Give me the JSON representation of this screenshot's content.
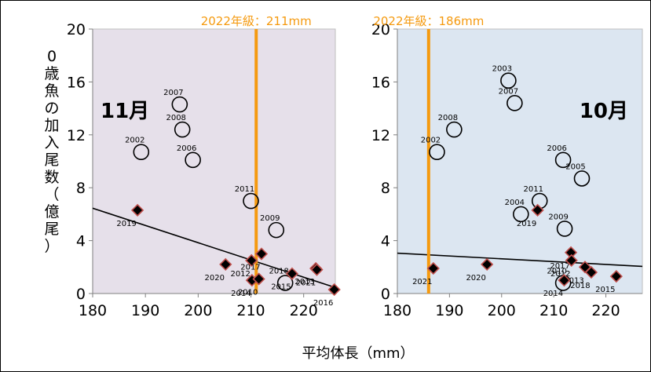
{
  "figure": {
    "xlabel": "平均体長（mm）",
    "ylabel_chars": [
      "0",
      "歳",
      "魚",
      "の",
      "加",
      "入",
      "尾",
      "数",
      "（",
      "億",
      "尾",
      "）"
    ],
    "colors": {
      "marker_line": "#000000",
      "diamond_fill": "#000000",
      "diamond_edge": "#c0504d",
      "vline": "#f59a0f",
      "trend": "#000000"
    }
  },
  "chart_data": [
    {
      "type": "scatter",
      "title": "",
      "panel_label": "11月",
      "plot_bg": "#e6e0ea",
      "xlim": [
        180,
        226
      ],
      "ylim": [
        0,
        20
      ],
      "xticks": [
        180,
        190,
        200,
        210,
        220
      ],
      "yticks": [
        0,
        4,
        8,
        12,
        16,
        20
      ],
      "vline": {
        "x": 211,
        "label": "2022年級：211mm"
      },
      "trendline": {
        "x": [
          180,
          226
        ],
        "y": [
          6.45,
          0.45
        ]
      },
      "series": [
        {
          "marker": "circle",
          "points": [
            {
              "x": 189.2,
              "y": 10.7,
              "label": "2002"
            },
            {
              "x": 196.5,
              "y": 14.3,
              "label": "2007"
            },
            {
              "x": 197.0,
              "y": 12.4,
              "label": "2008"
            },
            {
              "x": 199.0,
              "y": 10.1,
              "label": "2006"
            },
            {
              "x": 210.0,
              "y": 7.0,
              "label": "2011"
            },
            {
              "x": 214.8,
              "y": 4.8,
              "label": "2009"
            },
            {
              "x": 216.5,
              "y": 0.8,
              "label": "2018"
            }
          ]
        },
        {
          "marker": "diamond",
          "points": [
            {
              "x": 188.5,
              "y": 6.3,
              "label": "2019"
            },
            {
              "x": 205.2,
              "y": 2.2,
              "label": "2020"
            },
            {
              "x": 210.1,
              "y": 2.5,
              "label": "2012"
            },
            {
              "x": 210.2,
              "y": 1.0,
              "label": "2014"
            },
            {
              "x": 212.0,
              "y": 3.0,
              "label": "2017"
            },
            {
              "x": 211.5,
              "y": 1.1,
              "label": "2010"
            },
            {
              "x": 217.8,
              "y": 1.5,
              "label": "2015"
            },
            {
              "x": 222.3,
              "y": 1.9,
              "label": "2013"
            },
            {
              "x": 222.5,
              "y": 1.8,
              "label": "2021"
            },
            {
              "x": 225.8,
              "y": 0.3,
              "label": "2016"
            }
          ]
        }
      ]
    },
    {
      "type": "scatter",
      "title": "",
      "panel_label": "10月",
      "plot_bg": "#dce6f1",
      "xlim": [
        180,
        227
      ],
      "ylim": [
        0,
        20
      ],
      "xticks": [
        180,
        190,
        200,
        210,
        220
      ],
      "yticks": [
        0,
        4,
        8,
        12,
        16,
        20
      ],
      "vline": {
        "x": 186,
        "label": "2022年級：186mm"
      },
      "trendline": {
        "x": [
          180,
          227
        ],
        "y": [
          3.05,
          2.05
        ]
      },
      "series": [
        {
          "marker": "circle",
          "points": [
            {
              "x": 187.6,
              "y": 10.7,
              "label": "2002"
            },
            {
              "x": 190.9,
              "y": 12.4,
              "label": "2008"
            },
            {
              "x": 201.3,
              "y": 16.1,
              "label": "2003"
            },
            {
              "x": 202.5,
              "y": 14.4,
              "label": "2007"
            },
            {
              "x": 211.8,
              "y": 10.1,
              "label": "2006"
            },
            {
              "x": 215.4,
              "y": 8.7,
              "label": "2005"
            },
            {
              "x": 207.3,
              "y": 7.0,
              "label": "2011"
            },
            {
              "x": 203.7,
              "y": 6.0,
              "label": "2004"
            },
            {
              "x": 212.1,
              "y": 4.9,
              "label": "2009"
            },
            {
              "x": 211.8,
              "y": 0.8,
              "label": "2010"
            }
          ]
        },
        {
          "marker": "diamond",
          "points": [
            {
              "x": 186.9,
              "y": 1.9,
              "label": "2021"
            },
            {
              "x": 197.2,
              "y": 2.2,
              "label": "2020"
            },
            {
              "x": 206.9,
              "y": 6.3,
              "label": "2019"
            },
            {
              "x": 213.3,
              "y": 3.1,
              "label": "2017"
            },
            {
              "x": 213.4,
              "y": 2.5,
              "label": "2012"
            },
            {
              "x": 216.0,
              "y": 2.0,
              "label": "2013"
            },
            {
              "x": 217.2,
              "y": 1.6,
              "label": "2018"
            },
            {
              "x": 212.0,
              "y": 1.0,
              "label": "2014"
            },
            {
              "x": 222.0,
              "y": 1.3,
              "label": "2015"
            }
          ]
        }
      ]
    }
  ]
}
